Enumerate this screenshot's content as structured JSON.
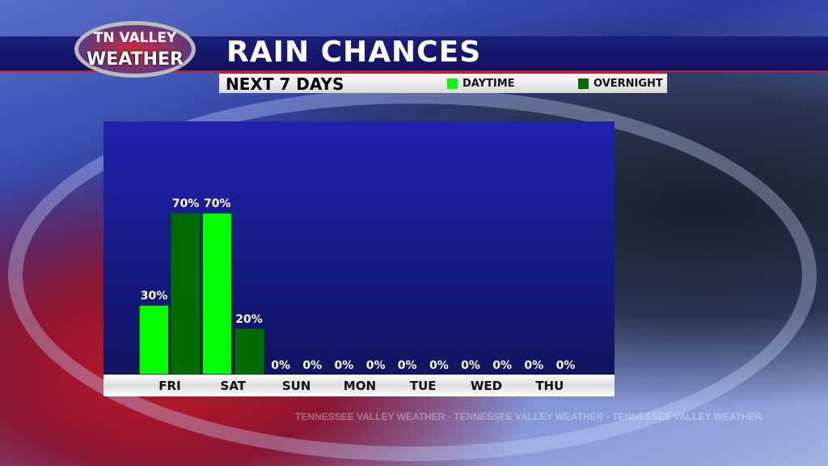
{
  "header": {
    "logo_line1": "TN VALLEY",
    "logo_line2": "WEATHER",
    "title": "RAIN CHANCES",
    "subtitle": "NEXT 7 DAYS"
  },
  "watermark": "TENNESSEE VALLEY WEATHER - TENNESSEE VALLEY WEATHER - TENNESSEE VALLEY WEATHER",
  "chart_data": {
    "type": "bar",
    "title": "RAIN CHANCES",
    "subtitle": "NEXT 7 DAYS",
    "categories": [
      "FRI",
      "SAT",
      "SUN",
      "MON",
      "TUE",
      "WED",
      "THU"
    ],
    "series": [
      {
        "name": "DAYTIME",
        "color": "#00ff00",
        "values": [
          30,
          70,
          0,
          0,
          0,
          0,
          0
        ]
      },
      {
        "name": "OVERNIGHT",
        "color": "#006b00",
        "values": [
          70,
          20,
          0,
          0,
          0,
          0,
          0
        ]
      }
    ],
    "unit": "%",
    "ylim": [
      0,
      100
    ],
    "grid": false,
    "legend": "top-right"
  }
}
